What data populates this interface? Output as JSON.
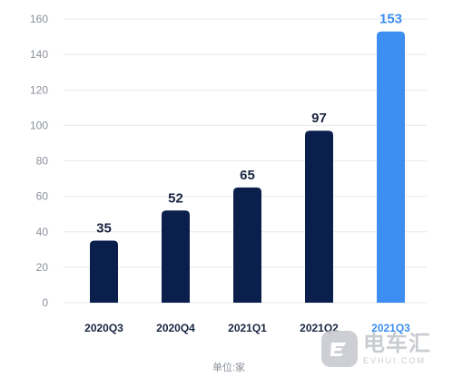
{
  "chart_data": {
    "type": "bar",
    "categories": [
      "2020Q3",
      "2020Q4",
      "2021Q1",
      "2021Q2",
      "2021Q3"
    ],
    "values": [
      35,
      52,
      65,
      97,
      153
    ],
    "ylim": [
      0,
      160
    ],
    "yticks": [
      0,
      20,
      40,
      60,
      80,
      100,
      120,
      140,
      160
    ],
    "grid": true,
    "unit_label": "单位:家",
    "colors": {
      "bar_default": "#0b1f4d",
      "bar_highlight": "#3d8ef0",
      "label_default": "#1a2540",
      "label_highlight": "#3d8ef0",
      "grid": "#e6e8ec",
      "tick": "#8a8f99"
    },
    "highlight_index": 4
  },
  "watermark": {
    "logo_icon": "ev-logo-icon",
    "text_cn": "电车汇",
    "text_en": "EVHUI.COM"
  }
}
